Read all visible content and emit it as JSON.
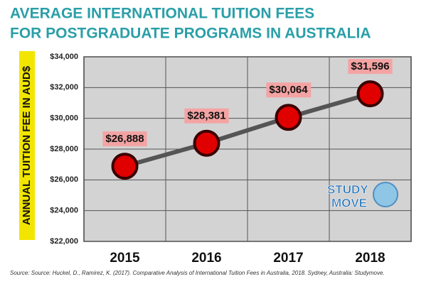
{
  "chart_data": {
    "type": "line",
    "title": "AVERAGE INTERNATIONAL TUITION FEES",
    "subtitle": "FOR POSTGRADUATE PROGRAMS IN AUSTRALIA",
    "y_label": "ANNUAL TUITION FEE IN AUD$",
    "categories": [
      "2015",
      "2016",
      "2017",
      "2018"
    ],
    "values": [
      26888,
      28381,
      30064,
      31596
    ],
    "value_labels": [
      "$26,888",
      "$28,381",
      "$30,064",
      "$31,596"
    ],
    "color": "#555555",
    "marker_color": "#e00000",
    "ylim": [
      22000,
      34000
    ],
    "yticks": [
      {
        "value": 22000,
        "label": "$22,000"
      },
      {
        "value": 24000,
        "label": "$24,000"
      },
      {
        "value": 26000,
        "label": "$26,000"
      },
      {
        "value": 28000,
        "label": "$28,000"
      },
      {
        "value": 30000,
        "label": "$30,000"
      },
      {
        "value": 32000,
        "label": "$32,000"
      },
      {
        "value": 34000,
        "label": "$34,000"
      }
    ],
    "grid": true,
    "source": "Source: Source: Huckel, D., Ramirez, K. (2017). Comparative Analysis of International Tuition Fees in Australia, 2018. Sydney, Australia: Studymove."
  },
  "logo": {
    "line1": "STUDY",
    "line2": "MOVE"
  }
}
